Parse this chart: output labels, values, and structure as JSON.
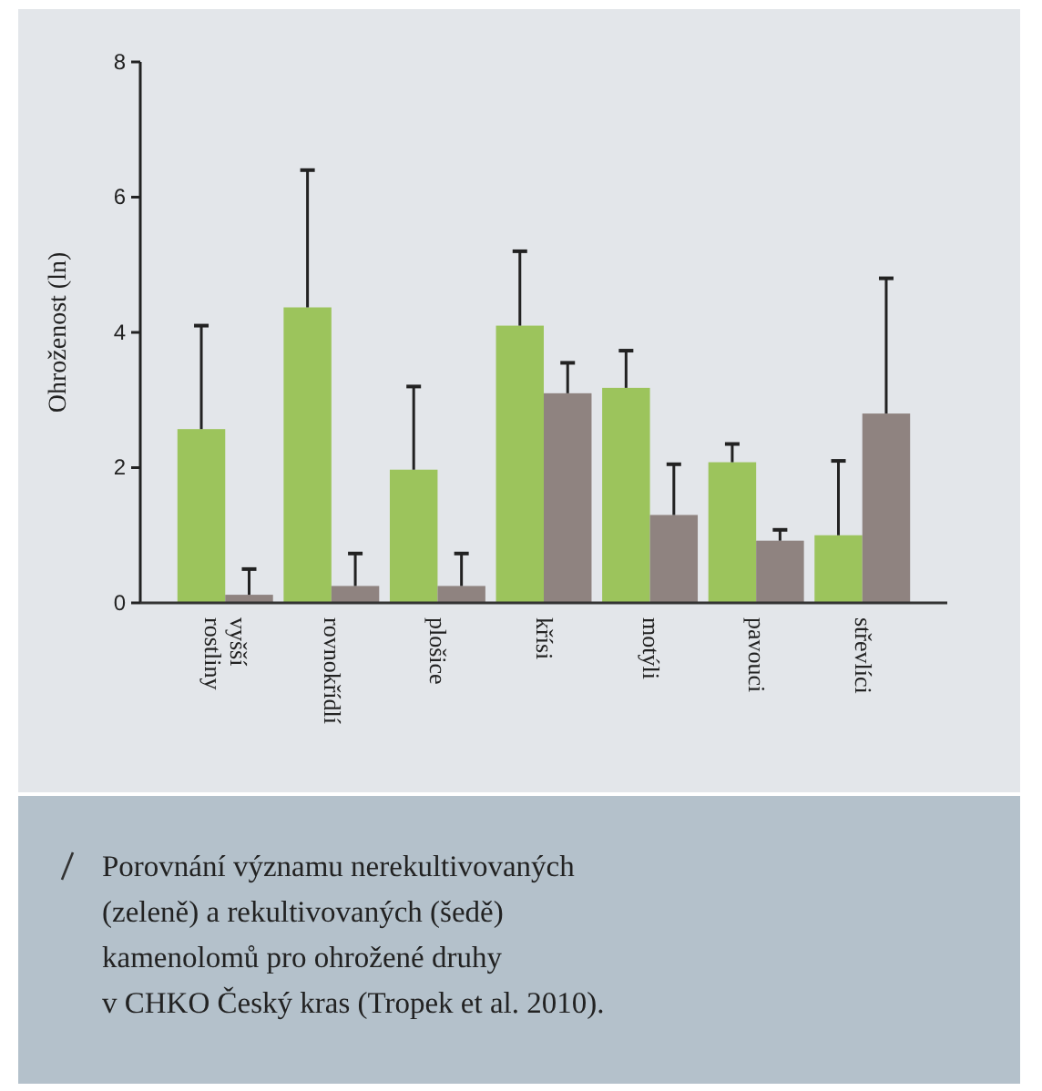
{
  "chart_data": {
    "type": "bar",
    "ylabel": "Ohroženost (ln)",
    "categories": [
      "vyšší rostliny",
      "rovnokřídlí",
      "plošice",
      "křísi",
      "motýli",
      "pavouci",
      "střevlíci"
    ],
    "series": [
      {
        "color": "#9cc45c",
        "values": [
          2.57,
          4.37,
          1.97,
          4.1,
          3.18,
          2.08,
          1.0
        ],
        "errors": [
          [
            2.57,
            4.1
          ],
          [
            4.37,
            6.4
          ],
          [
            1.97,
            3.2
          ],
          [
            4.1,
            5.2
          ],
          [
            3.18,
            3.73
          ],
          [
            2.08,
            2.35
          ],
          [
            1.0,
            2.1
          ]
        ]
      },
      {
        "color": "#8f8380",
        "values": [
          0.12,
          0.25,
          0.25,
          3.1,
          1.3,
          0.92,
          2.8
        ],
        "errors": [
          [
            0.12,
            0.5
          ],
          [
            0.25,
            0.73
          ],
          [
            0.25,
            0.73
          ],
          [
            3.1,
            3.55
          ],
          [
            1.3,
            2.05
          ],
          [
            0.92,
            1.08
          ],
          [
            2.8,
            4.8
          ]
        ]
      }
    ],
    "ylim": [
      0,
      8
    ],
    "yticks": [
      0,
      2,
      4,
      6,
      8
    ],
    "grid": false,
    "annotations": [
      "Porovnání významu nerekultivovaných\n(zeleně) a rekultivovaných (šedě)\nkamenolomů pro ohrožené druhy\nv CHKO Český kras (Tropek et al. 2010)."
    ]
  }
}
